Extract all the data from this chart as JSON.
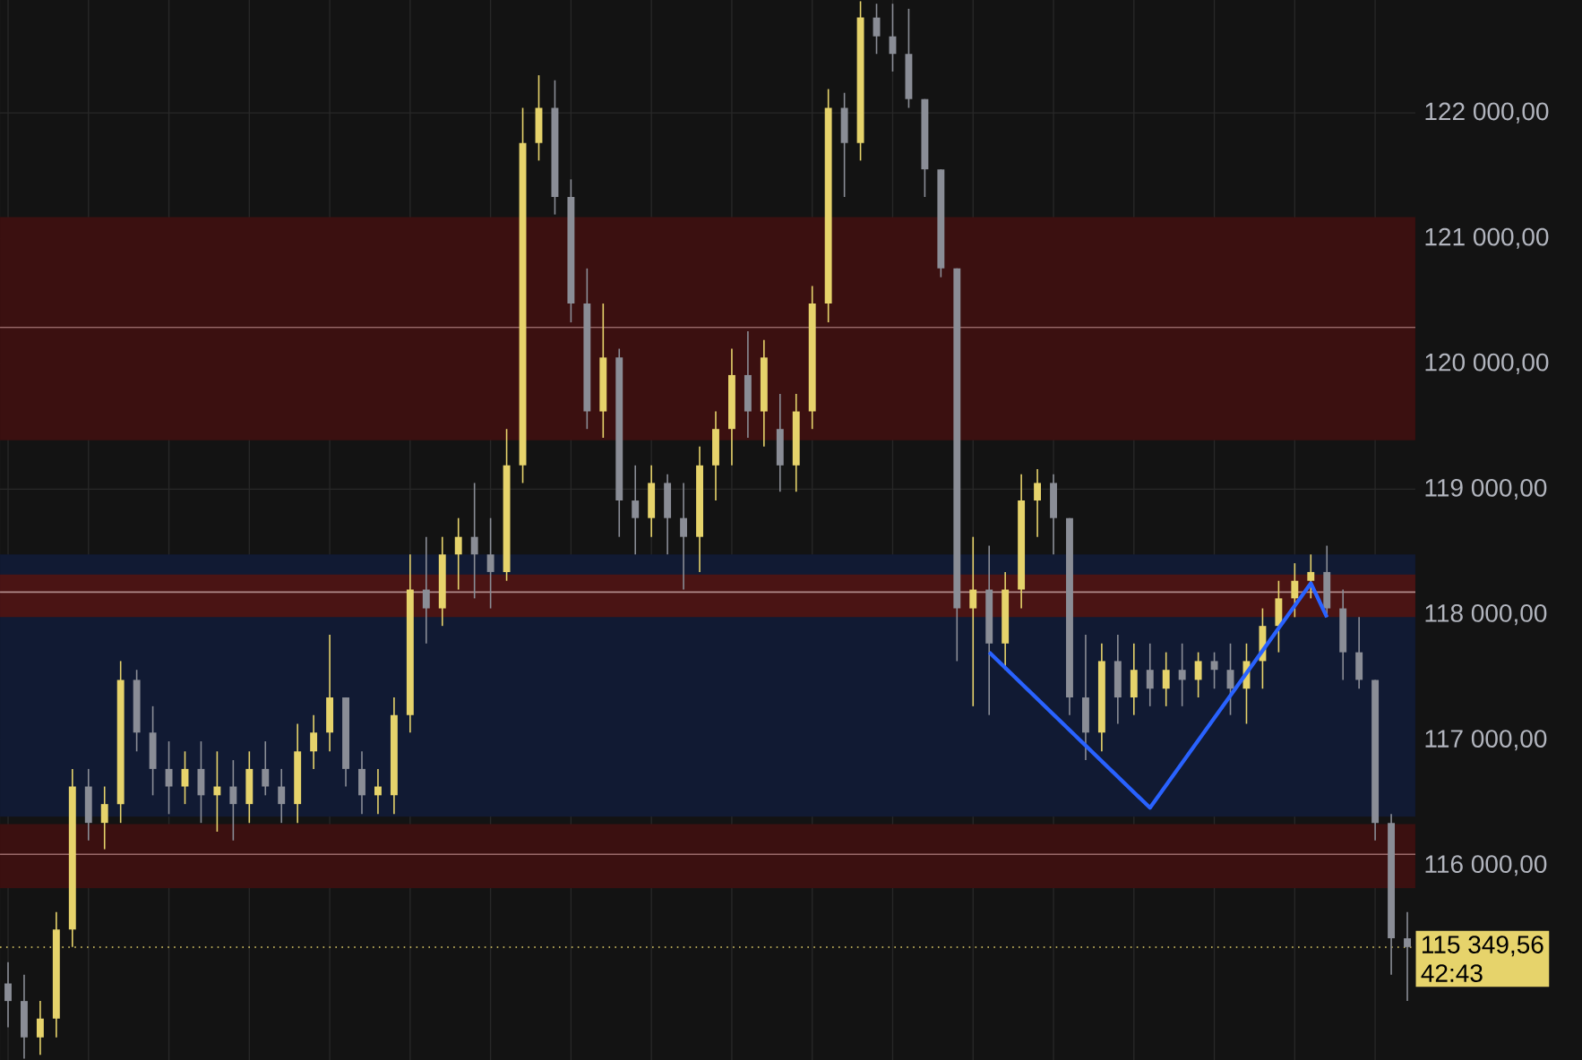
{
  "chart_data": {
    "type": "candlestick",
    "colors": [
      "#8a8d96",
      "#8a8d96",
      "#e6d36b",
      "#e6d36b",
      "#e6d36b",
      "#8a8d96",
      "#e6d36b",
      "#e6d36b",
      "#8a8d96",
      "#8a8d96",
      "#8a8d96",
      "#e6d36b",
      "#8a8d96",
      "#e6d36b",
      "#8a8d96",
      "#e6d36b",
      "#8a8d96",
      "#8a8d96",
      "#e6d36b",
      "#e6d36b",
      "#e6d36b",
      "#8a8d96",
      "#8a8d96",
      "#e6d36b",
      "#e6d36b",
      "#e6d36b",
      "#8a8d96",
      "#e6d36b",
      "#e6d36b",
      "#8a8d96",
      "#8a8d96",
      "#e6d36b",
      "#e6d36b",
      "#e6d36b",
      "#8a8d96",
      "#8a8d96",
      "#8a8d96",
      "#e6d36b",
      "#8a8d96",
      "#8a8d96",
      "#e6d36b",
      "#8a8d96",
      "#8a8d96",
      "#e6d36b",
      "#e6d36b",
      "#e6d36b",
      "#8a8d96",
      "#e6d36b",
      "#8a8d96",
      "#e6d36b",
      "#e6d36b",
      "#e6d36b",
      "#8a8d96",
      "#e6d36b",
      "#8a8d96",
      "#8a8d96",
      "#8a8d96",
      "#8a8d96",
      "#8a8d96",
      "#8a8d96",
      "#e6d36b",
      "#8a8d96",
      "#e6d36b",
      "#e6d36b",
      "#e6d36b",
      "#8a8d96",
      "#8a8d96",
      "#8a8d96",
      "#e6d36b",
      "#8a8d96",
      "#e6d36b",
      "#8a8d96",
      "#e6d36b",
      "#8a8d96",
      "#e6d36b",
      "#8a8d96",
      "#8a8d96",
      "#e6d36b",
      "#e6d36b",
      "#e6d36b",
      "#e6d36b",
      "#e6d36b",
      "#8a8d96",
      "#8a8d96",
      "#8a8d96",
      "#8a8d96",
      "#8a8d96",
      "#8a8d96"
    ],
    "grid": true,
    "tick_labels": "y",
    "ylim": [
      114450,
      122900
    ],
    "yticks": [
      {
        "value": 116000,
        "label": "116 000,00"
      },
      {
        "value": 117000,
        "label": "117 000,00"
      },
      {
        "value": 118000,
        "label": "118 000,00"
      },
      {
        "value": 119000,
        "label": "119 000,00"
      },
      {
        "value": 120000,
        "label": "120 000,00"
      },
      {
        "value": 121000,
        "label": "121 000,00"
      },
      {
        "value": 122000,
        "label": "122 000,00"
      }
    ],
    "categories": [
      null,
      null,
      null,
      null,
      null,
      null,
      null,
      null,
      null,
      null,
      null,
      null,
      null,
      null,
      null,
      null,
      null,
      null,
      null,
      null,
      null,
      null,
      null,
      null,
      null,
      null,
      null,
      null,
      null,
      null,
      null,
      null,
      null,
      null,
      null,
      null,
      null,
      null,
      null,
      null,
      null,
      null,
      null,
      null,
      null,
      null,
      null,
      null,
      null,
      null,
      null,
      null,
      null,
      null,
      null,
      null,
      null,
      null,
      null,
      null,
      null,
      null,
      null,
      null,
      null,
      null,
      null,
      null,
      null,
      null,
      null,
      null,
      null,
      null,
      null,
      null,
      null,
      null,
      null,
      null,
      null,
      null,
      null,
      null,
      null,
      null,
      null,
      null
    ],
    "ohlc": [
      [
        115060,
        115230,
        114710,
        114920
      ],
      [
        114920,
        115130,
        114460,
        114630
      ],
      [
        114630,
        114920,
        114490,
        114780
      ],
      [
        114780,
        115630,
        114630,
        115490
      ],
      [
        115490,
        116770,
        115350,
        116630
      ],
      [
        116630,
        116770,
        116200,
        116340
      ],
      [
        116340,
        116630,
        116130,
        116490
      ],
      [
        116490,
        117630,
        116340,
        117480
      ],
      [
        117480,
        117560,
        116910,
        117060
      ],
      [
        117060,
        117270,
        116560,
        116770
      ],
      [
        116770,
        116990,
        116410,
        116630
      ],
      [
        116630,
        116910,
        116490,
        116770
      ],
      [
        116770,
        116990,
        116340,
        116560
      ],
      [
        116560,
        116910,
        116270,
        116630
      ],
      [
        116630,
        116840,
        116200,
        116490
      ],
      [
        116490,
        116910,
        116340,
        116770
      ],
      [
        116770,
        116990,
        116560,
        116630
      ],
      [
        116630,
        116770,
        116340,
        116490
      ],
      [
        116490,
        117130,
        116340,
        116910
      ],
      [
        116910,
        117200,
        116770,
        117060
      ],
      [
        117060,
        117840,
        116910,
        117340
      ],
      [
        117340,
        117340,
        116630,
        116770
      ],
      [
        116770,
        116910,
        116410,
        116560
      ],
      [
        116560,
        116770,
        116410,
        116630
      ],
      [
        116560,
        117340,
        116410,
        117200
      ],
      [
        117200,
        118480,
        117060,
        118200
      ],
      [
        118200,
        118620,
        117770,
        118050
      ],
      [
        118050,
        118620,
        117910,
        118480
      ],
      [
        118480,
        118770,
        118200,
        118620
      ],
      [
        118620,
        119050,
        118130,
        118480
      ],
      [
        118480,
        118770,
        118050,
        118340
      ],
      [
        118340,
        119480,
        118270,
        119190
      ],
      [
        119190,
        122040,
        119050,
        121760
      ],
      [
        121760,
        122300,
        121620,
        122040
      ],
      [
        122040,
        122260,
        121190,
        121330
      ],
      [
        121330,
        121470,
        120330,
        120480
      ],
      [
        120480,
        120760,
        119480,
        119620
      ],
      [
        119620,
        120480,
        119410,
        120050
      ],
      [
        120050,
        120120,
        118620,
        118910
      ],
      [
        118910,
        119190,
        118480,
        118770
      ],
      [
        118770,
        119190,
        118620,
        119050
      ],
      [
        119050,
        119120,
        118480,
        118770
      ],
      [
        118770,
        119050,
        118200,
        118620
      ],
      [
        118620,
        119340,
        118340,
        119190
      ],
      [
        119190,
        119620,
        118910,
        119480
      ],
      [
        119480,
        120120,
        119190,
        119910
      ],
      [
        119910,
        120260,
        119410,
        119620
      ],
      [
        119620,
        120190,
        119340,
        120050
      ],
      [
        119480,
        119760,
        118980,
        119190
      ],
      [
        119190,
        119760,
        118980,
        119620
      ],
      [
        119620,
        120620,
        119480,
        120480
      ],
      [
        120480,
        122190,
        120330,
        122040
      ],
      [
        122040,
        122160,
        121330,
        121760
      ],
      [
        121760,
        122890,
        121620,
        122760
      ],
      [
        122760,
        122870,
        122470,
        122610
      ],
      [
        122610,
        122870,
        122330,
        122470
      ],
      [
        122470,
        122830,
        122040,
        122110
      ],
      [
        122110,
        122110,
        121330,
        121550
      ],
      [
        121550,
        121550,
        120690,
        120760
      ],
      [
        120760,
        120760,
        117630,
        118050
      ],
      [
        118050,
        118620,
        117270,
        118200
      ],
      [
        118200,
        118550,
        117200,
        117770
      ],
      [
        117770,
        118340,
        117560,
        118200
      ],
      [
        118200,
        119120,
        118050,
        118910
      ],
      [
        118910,
        119160,
        118620,
        119050
      ],
      [
        119050,
        119120,
        118480,
        118770
      ],
      [
        118770,
        118770,
        117200,
        117340
      ],
      [
        117340,
        117840,
        116840,
        117060
      ],
      [
        117060,
        117770,
        116910,
        117630
      ],
      [
        117630,
        117840,
        117130,
        117340
      ],
      [
        117340,
        117770,
        117200,
        117560
      ],
      [
        117560,
        117770,
        117270,
        117410
      ],
      [
        117410,
        117700,
        117270,
        117560
      ],
      [
        117560,
        117770,
        117270,
        117480
      ],
      [
        117480,
        117700,
        117340,
        117630
      ],
      [
        117630,
        117700,
        117410,
        117560
      ],
      [
        117560,
        117770,
        117200,
        117410
      ],
      [
        117410,
        117770,
        117130,
        117630
      ],
      [
        117630,
        118050,
        117410,
        117910
      ],
      [
        117910,
        118270,
        117700,
        118130
      ],
      [
        118130,
        118410,
        117980,
        118270
      ],
      [
        118270,
        118480,
        118130,
        118340
      ],
      [
        118340,
        118550,
        117980,
        118050
      ],
      [
        118050,
        118200,
        117480,
        117700
      ],
      [
        117700,
        117980,
        117410,
        117480
      ],
      [
        117480,
        117480,
        116200,
        116340
      ],
      [
        116340,
        116410,
        115130,
        115420
      ],
      [
        115420,
        115630,
        114920,
        115350
      ]
    ],
    "series": [
      {
        "type": "line",
        "color": "#2962ff",
        "values": [
          null,
          null,
          null,
          null,
          null,
          null,
          null,
          null,
          null,
          null,
          null,
          null,
          null,
          null,
          null,
          null,
          null,
          null,
          null,
          null,
          null,
          null,
          null,
          null,
          null,
          null,
          null,
          null,
          null,
          null,
          null,
          null,
          null,
          null,
          null,
          null,
          null,
          null,
          null,
          null,
          null,
          null,
          null,
          null,
          null,
          null,
          null,
          null,
          null,
          null,
          null,
          null,
          null,
          null,
          null,
          null,
          null,
          null,
          null,
          null,
          null,
          117700,
          null,
          null,
          null,
          null,
          null,
          null,
          null,
          null,
          null,
          116460,
          null,
          null,
          null,
          null,
          null,
          null,
          null,
          null,
          null,
          118250,
          117980,
          null,
          null,
          null,
          null,
          null
        ]
      }
    ],
    "bands": [
      {
        "axis": "y",
        "from": 116390,
        "to": 118480,
        "color": "#111a33"
      },
      {
        "axis": "y",
        "from": 119390,
        "to": 121170,
        "color": "#3b1010"
      },
      {
        "axis": "y",
        "from": 117980,
        "to": 118320,
        "color": "#4a1414"
      },
      {
        "axis": "y",
        "from": 115820,
        "to": 116330,
        "color": "#3b1010"
      }
    ],
    "ref_lines": [
      {
        "axis": "y",
        "value": 120290,
        "color": "#9a6a6a",
        "line_style": "solid"
      },
      {
        "axis": "y",
        "value": 118180,
        "color": "#b08a8a",
        "line_style": "solid"
      },
      {
        "axis": "y",
        "value": 116090,
        "color": "#9a6a6a",
        "line_style": "solid"
      },
      {
        "axis": "y",
        "value": 115349.56,
        "label": "115 349,56",
        "color": "#e6d36b",
        "line_style": "dotted"
      }
    ],
    "annotations": [
      "42:43"
    ]
  }
}
